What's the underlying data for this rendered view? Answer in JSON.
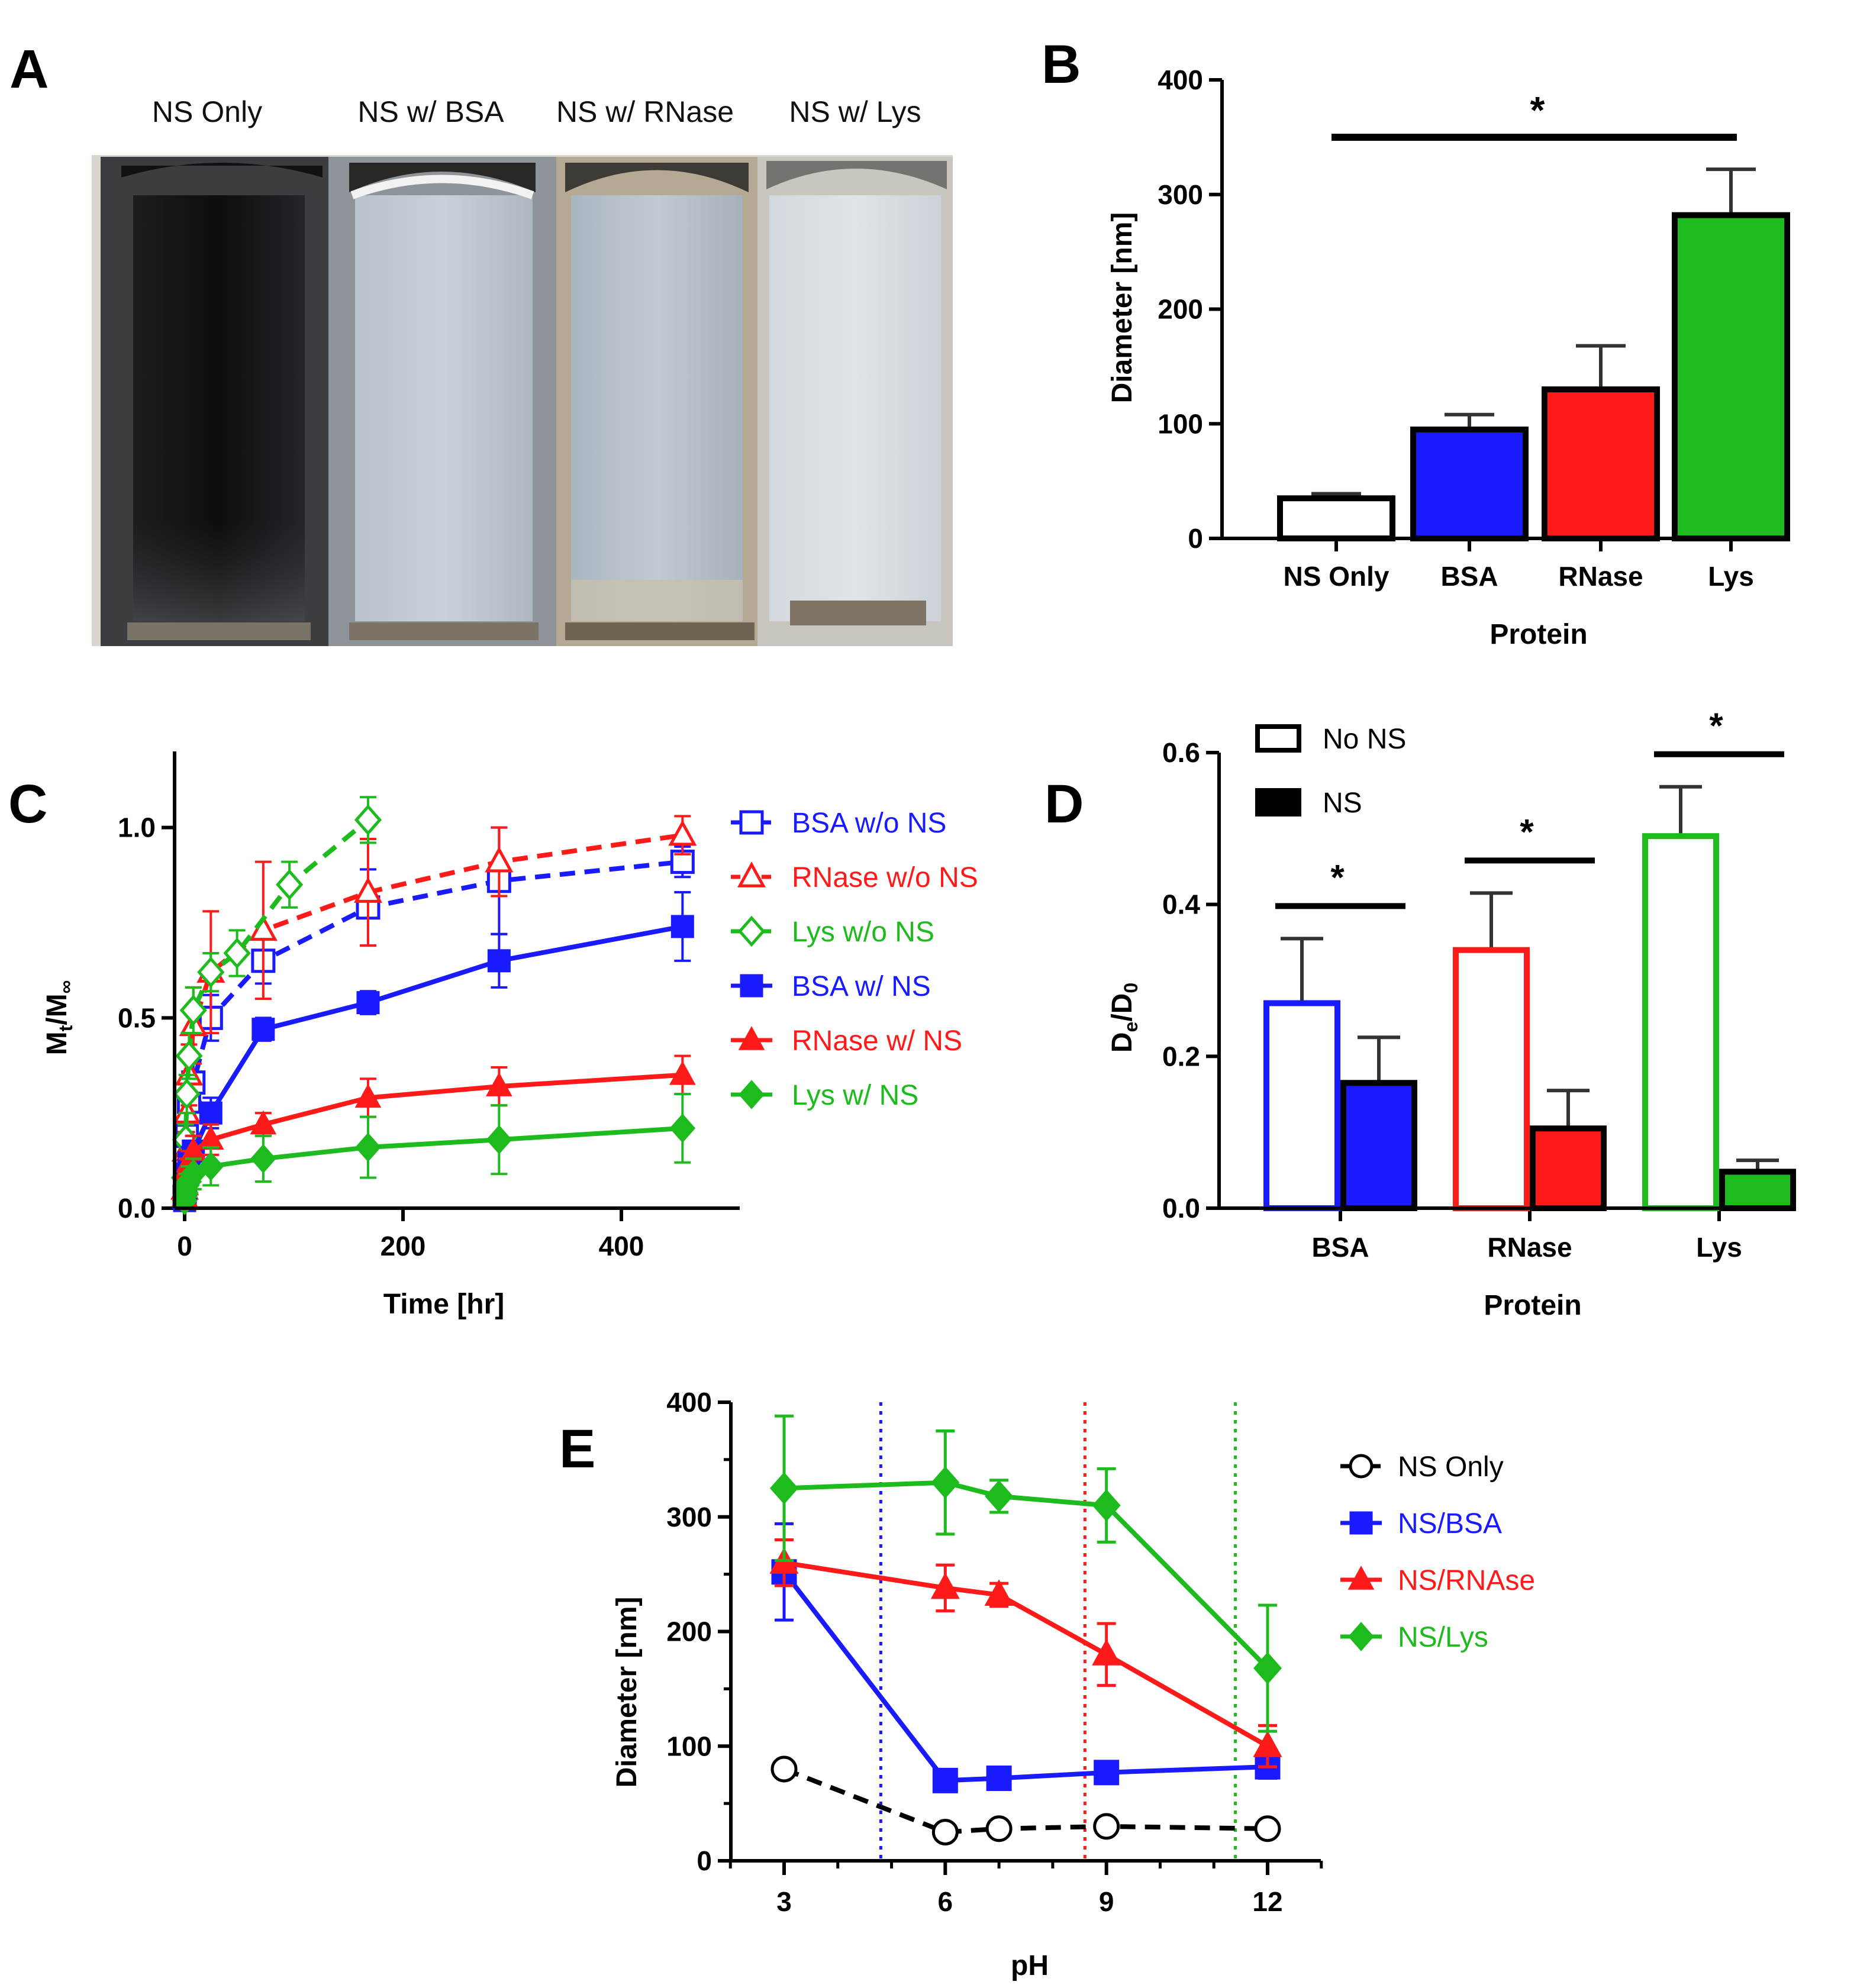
{
  "panels": {
    "A": {
      "label": "A",
      "captions": [
        "NS Only",
        "NS w/ BSA",
        "NS w/ RNase",
        "NS w/ Lys"
      ]
    },
    "B": {
      "label": "B",
      "significance": "*"
    },
    "C": {
      "label": "C"
    },
    "D": {
      "label": "D"
    },
    "E": {
      "label": "E"
    }
  },
  "colors": {
    "blue": "#1a1aff",
    "red": "#ff1a1a",
    "green": "#1dbb1d",
    "black": "#000000"
  },
  "chart_data": [
    {
      "panel": "B",
      "type": "bar",
      "categories": [
        "NS Only",
        "BSA",
        "RNase",
        "Lys"
      ],
      "values": [
        35,
        95,
        130,
        282
      ],
      "errors": [
        4,
        13,
        38,
        40
      ],
      "bar_colors": [
        "#ffffff",
        "#1a1aff",
        "#ff1a1a",
        "#1dbb1d"
      ],
      "xlabel": "Protein",
      "ylabel": "Diameter [nm]",
      "ylim": [
        0,
        400
      ],
      "yticks": [
        "0",
        "100",
        "200",
        "300",
        "400"
      ],
      "annotation": "*"
    },
    {
      "panel": "C",
      "type": "line",
      "xlabel": "Time [hr]",
      "ylabel_main": "M",
      "ylabel_sub1": "t",
      "ylabel_mid": "/M",
      "ylabel_sub2": "∞",
      "xlim": [
        -20,
        520
      ],
      "ylim": [
        0,
        1.2
      ],
      "xticks": [
        "0",
        "200",
        "400"
      ],
      "yticks": [
        "0.0",
        "0.5",
        "1.0"
      ],
      "series": [
        {
          "name": "BSA w/o NS",
          "color": "#1a1aff",
          "marker": "square-open",
          "dash": true,
          "x": [
            0,
            1,
            2,
            4,
            8,
            24,
            72,
            168,
            288,
            456
          ],
          "y": [
            0.03,
            0.1,
            0.19,
            0.28,
            0.33,
            0.5,
            0.65,
            0.79,
            0.86,
            0.91
          ],
          "err": [
            0.03,
            0.04,
            0.05,
            0.05,
            0.05,
            0.06,
            0.06,
            0.1,
            0.14,
            0.04
          ]
        },
        {
          "name": "RNase w/o NS",
          "color": "#ff1a1a",
          "marker": "triangle-open",
          "dash": true,
          "x": [
            0,
            1,
            2,
            4,
            8,
            24,
            72,
            168,
            288,
            456
          ],
          "y": [
            0.05,
            0.15,
            0.25,
            0.35,
            0.48,
            0.62,
            0.73,
            0.83,
            0.91,
            0.98
          ],
          "err": [
            0.03,
            0.05,
            0.05,
            0.08,
            0.1,
            0.16,
            0.18,
            0.14,
            0.09,
            0.05
          ]
        },
        {
          "name": "Lys w/o NS",
          "color": "#1dbb1d",
          "marker": "diamond-open",
          "dash": true,
          "x": [
            0,
            1,
            2,
            4,
            8,
            24,
            48,
            96,
            168
          ],
          "y": [
            0.08,
            0.18,
            0.3,
            0.4,
            0.52,
            0.62,
            0.67,
            0.85,
            1.02
          ],
          "err": [
            0.03,
            0.04,
            0.05,
            0.06,
            0.06,
            0.05,
            0.06,
            0.06,
            0.06
          ]
        },
        {
          "name": "BSA w/ NS",
          "color": "#1a1aff",
          "marker": "square",
          "dash": false,
          "x": [
            0,
            1,
            2,
            4,
            8,
            24,
            72,
            168,
            288,
            456
          ],
          "y": [
            0.02,
            0.05,
            0.09,
            0.12,
            0.15,
            0.25,
            0.47,
            0.54,
            0.65,
            0.74
          ],
          "err": [
            0.02,
            0.03,
            0.03,
            0.04,
            0.04,
            0.04,
            0.03,
            0.03,
            0.07,
            0.09
          ]
        },
        {
          "name": "RNase w/ NS",
          "color": "#ff1a1a",
          "marker": "triangle",
          "dash": false,
          "x": [
            0,
            1,
            2,
            4,
            8,
            24,
            72,
            168,
            288,
            456
          ],
          "y": [
            0.03,
            0.06,
            0.1,
            0.12,
            0.15,
            0.18,
            0.22,
            0.29,
            0.32,
            0.35
          ],
          "err": [
            0.02,
            0.03,
            0.03,
            0.03,
            0.04,
            0.04,
            0.03,
            0.05,
            0.05,
            0.05
          ]
        },
        {
          "name": "Lys w/ NS",
          "color": "#1dbb1d",
          "marker": "diamond",
          "dash": false,
          "x": [
            0,
            1,
            2,
            4,
            8,
            24,
            72,
            168,
            288,
            456
          ],
          "y": [
            0.02,
            0.04,
            0.06,
            0.07,
            0.09,
            0.11,
            0.13,
            0.16,
            0.18,
            0.21
          ],
          "err": [
            0.02,
            0.03,
            0.03,
            0.04,
            0.04,
            0.05,
            0.06,
            0.08,
            0.09,
            0.09
          ]
        }
      ]
    },
    {
      "panel": "D",
      "type": "bar",
      "categories": [
        "BSA",
        "RNase",
        "Lys"
      ],
      "series": [
        {
          "name": "No NS",
          "values": [
            0.27,
            0.34,
            0.49
          ],
          "errors": [
            0.085,
            0.075,
            0.065
          ],
          "fill": "open"
        },
        {
          "name": "NS",
          "values": [
            0.165,
            0.105,
            0.048
          ],
          "errors": [
            0.06,
            0.05,
            0.015
          ],
          "fill": "solid"
        }
      ],
      "category_colors": [
        "#1a1aff",
        "#ff1a1a",
        "#1dbb1d"
      ],
      "xlabel": "Protein",
      "ylabel_main": "D",
      "ylabel_sub1": "e",
      "ylabel_mid": "/D",
      "ylabel_sub2": "0",
      "ylim": [
        0,
        0.6
      ],
      "yticks": [
        "0.0",
        "0.2",
        "0.4",
        "0.6"
      ],
      "annotations": [
        "*",
        "*",
        "*"
      ]
    },
    {
      "panel": "E",
      "type": "line",
      "xlabel": "pH",
      "ylabel": "Diameter [nm]",
      "xlim": [
        2,
        13
      ],
      "ylim": [
        0,
        400
      ],
      "xticks": [
        "3",
        "6",
        "9",
        "12"
      ],
      "yticks": [
        "0",
        "100",
        "200",
        "300",
        "400"
      ],
      "vlines": [
        {
          "x": 4.8,
          "color": "#1a1aff"
        },
        {
          "x": 8.6,
          "color": "#ff1a1a"
        },
        {
          "x": 11.4,
          "color": "#1dbb1d"
        }
      ],
      "series": [
        {
          "name": "NS Only",
          "color": "#000000",
          "marker": "circle-open",
          "dash": true,
          "x": [
            3,
            6,
            7,
            9,
            12
          ],
          "y": [
            80,
            25,
            28,
            30,
            28
          ],
          "err": [
            3,
            3,
            3,
            3,
            3
          ]
        },
        {
          "name": "NS/BSA",
          "color": "#1a1aff",
          "marker": "square",
          "dash": false,
          "x": [
            3,
            6,
            7,
            9,
            12
          ],
          "y": [
            252,
            70,
            72,
            77,
            82
          ],
          "err": [
            42,
            8,
            8,
            8,
            10
          ]
        },
        {
          "name": "NS/RNAse",
          "color": "#ff1a1a",
          "marker": "triangle",
          "dash": false,
          "x": [
            3,
            6,
            7,
            9,
            12
          ],
          "y": [
            260,
            238,
            232,
            180,
            100
          ],
          "err": [
            20,
            20,
            10,
            27,
            18
          ]
        },
        {
          "name": "NS/Lys",
          "color": "#1dbb1d",
          "marker": "diamond",
          "dash": false,
          "x": [
            3,
            6,
            7,
            9,
            12
          ],
          "y": [
            325,
            330,
            318,
            310,
            168
          ],
          "err": [
            63,
            45,
            14,
            32,
            55
          ]
        }
      ]
    }
  ]
}
